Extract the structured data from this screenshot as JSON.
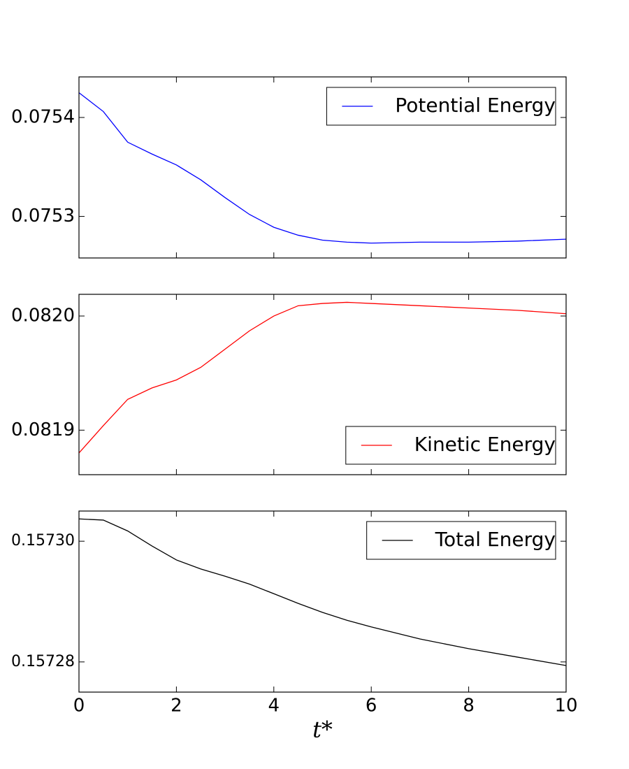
{
  "chart_data": [
    {
      "type": "line",
      "xlim": [
        0,
        10
      ],
      "xticks": [
        0,
        2,
        4,
        6,
        8,
        10
      ],
      "ylim": [
        0.075258,
        0.075441
      ],
      "yticks": [
        0.0753,
        0.0754
      ],
      "legend": "upper right",
      "x": [
        0,
        0.5,
        1,
        1.5,
        2,
        2.5,
        3,
        3.5,
        4,
        4.5,
        5,
        5.5,
        6,
        7,
        8,
        9,
        10
      ],
      "series": [
        {
          "name": "Potential Energy",
          "color": "#0000ff",
          "values": [
            0.075425,
            0.075406,
            0.075375,
            0.075363,
            0.075352,
            0.075337,
            0.075319,
            0.075302,
            0.075289,
            0.075281,
            0.075276,
            0.075274,
            0.075273,
            0.075274,
            0.075274,
            0.075275,
            0.075277
          ]
        }
      ]
    },
    {
      "type": "line",
      "xlim": [
        0,
        10
      ],
      "xticks": [
        0,
        2,
        4,
        6,
        8,
        10
      ],
      "ylim": [
        0.081861,
        0.082019
      ],
      "yticks": [
        0.0819,
        {
          "value": 0.082,
          "label": "0.0820"
        }
      ],
      "legend": "lower right",
      "x": [
        0,
        0.5,
        1,
        1.5,
        2,
        2.5,
        3,
        3.5,
        4,
        4.5,
        5,
        5.5,
        6,
        7,
        8,
        9,
        10
      ],
      "series": [
        {
          "name": "Kinetic Energy",
          "color": "#ff0000",
          "values": [
            0.08188,
            0.081904,
            0.081927,
            0.081937,
            0.081944,
            0.081955,
            0.081971,
            0.081987,
            0.082,
            0.082009,
            0.082011,
            0.082012,
            0.082011,
            0.082009,
            0.082007,
            0.082005,
            0.082002
          ]
        }
      ]
    },
    {
      "type": "line",
      "xlim": [
        0,
        10
      ],
      "xticks": [
        0,
        2,
        4,
        6,
        8,
        10
      ],
      "xlabel": "t*",
      "ylim": [
        0.157275,
        0.157305
      ],
      "yticks": [
        0.15728,
        {
          "value": 0.1573,
          "label": "0.15730"
        }
      ],
      "legend": "upper right",
      "x": [
        0,
        0.5,
        1,
        1.5,
        2,
        2.5,
        3,
        3.5,
        4,
        4.5,
        5,
        5.5,
        6,
        7,
        8,
        9,
        10
      ],
      "series": [
        {
          "name": "Total Energy",
          "color": "#000000",
          "values": [
            0.1573037,
            0.1573035,
            0.1573017,
            0.1572992,
            0.1572969,
            0.1572954,
            0.1572942,
            0.1572929,
            0.1572913,
            0.1572897,
            0.1572882,
            0.1572869,
            0.1572858,
            0.1572838,
            0.1572822,
            0.1572808,
            0.1572794
          ]
        }
      ]
    }
  ]
}
